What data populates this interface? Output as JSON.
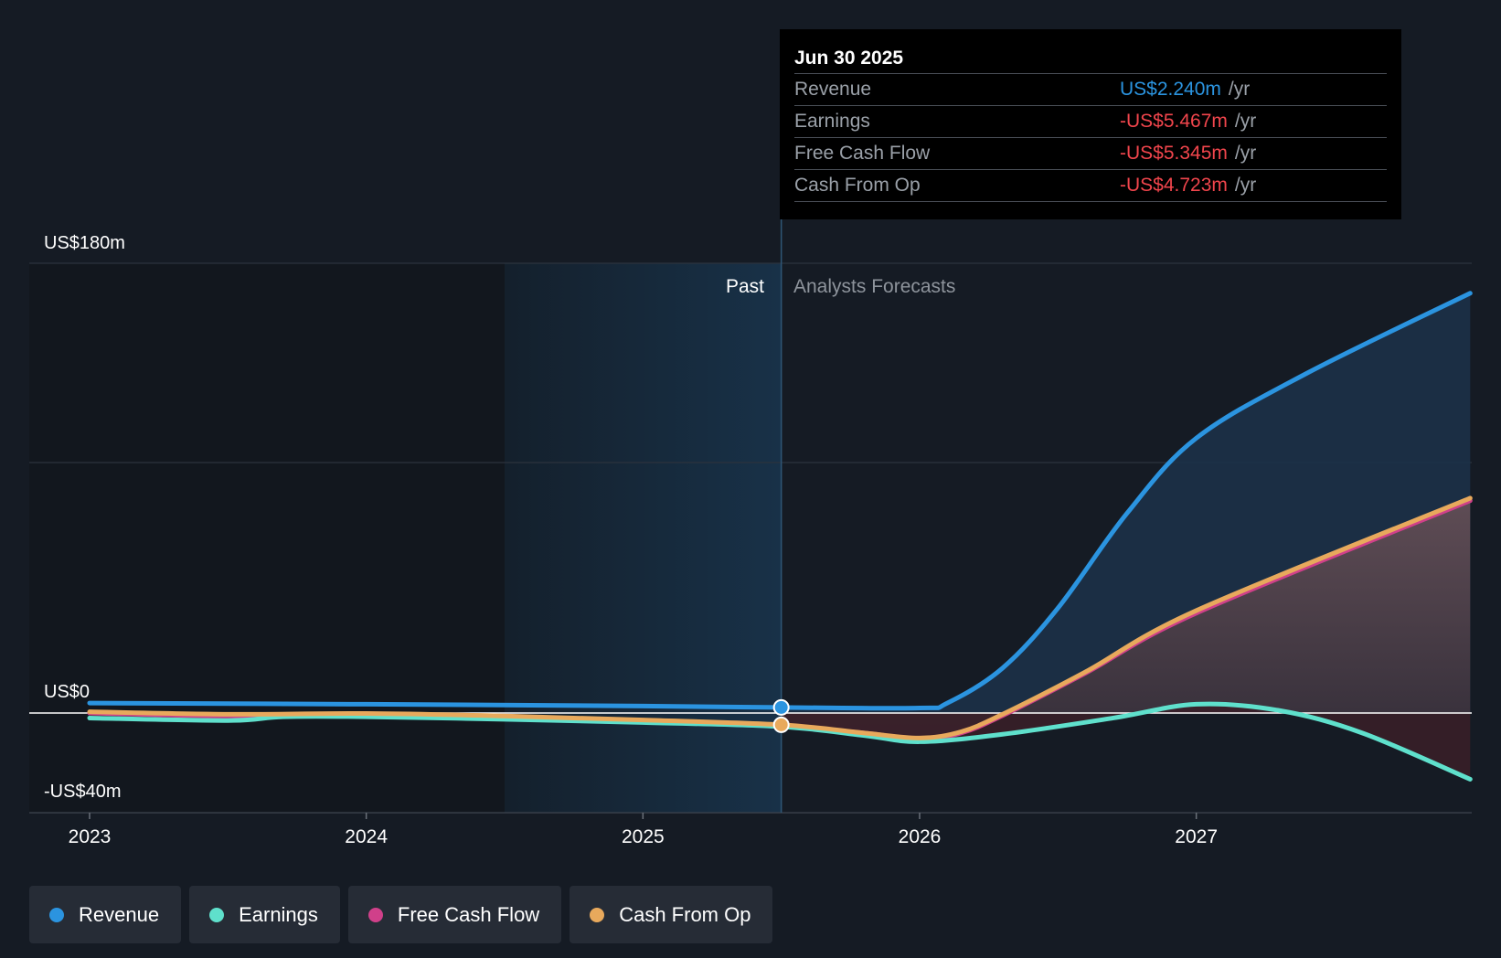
{
  "chart_data": {
    "type": "line",
    "y_axis": {
      "top_label": "US$180m",
      "zero_label": "US$0",
      "bottom_label": "-US$40m",
      "ylim": [
        -40,
        180
      ]
    },
    "x_axis": {
      "ticks": [
        "2023",
        "2024",
        "2025",
        "2026",
        "2027"
      ],
      "xlim": [
        2022.8,
        2027.99
      ]
    },
    "divider_x": 2025.5,
    "highlight_range": [
      2024.5,
      2025.5
    ],
    "past_label": "Past",
    "forecast_label": "Analysts Forecasts",
    "series": [
      {
        "name": "Revenue",
        "color": "#2b94e0",
        "points": [
          [
            2023.0,
            4.0
          ],
          [
            2024.0,
            3.5
          ],
          [
            2025.0,
            2.8
          ],
          [
            2025.5,
            2.24
          ],
          [
            2026.0,
            2.0
          ],
          [
            2026.1,
            4.0
          ],
          [
            2026.3,
            18.0
          ],
          [
            2026.5,
            42.0
          ],
          [
            2026.75,
            80.0
          ],
          [
            2027.0,
            110.0
          ],
          [
            2027.4,
            136.0
          ],
          [
            2027.99,
            168.0
          ]
        ]
      },
      {
        "name": "Earnings",
        "color": "#5fe0cc",
        "points": [
          [
            2023.0,
            -2.0
          ],
          [
            2023.5,
            -3.0
          ],
          [
            2023.7,
            -1.5
          ],
          [
            2024.0,
            -1.5
          ],
          [
            2024.5,
            -2.5
          ],
          [
            2025.0,
            -3.8
          ],
          [
            2025.5,
            -5.467
          ],
          [
            2025.8,
            -9.0
          ],
          [
            2026.0,
            -11.5
          ],
          [
            2026.3,
            -8.5
          ],
          [
            2026.7,
            -2.0
          ],
          [
            2027.0,
            3.5
          ],
          [
            2027.3,
            1.0
          ],
          [
            2027.6,
            -8.0
          ],
          [
            2027.99,
            -26.5
          ]
        ]
      },
      {
        "name": "Free Cash Flow",
        "color": "#d0408a",
        "points": [
          [
            2023.0,
            0.0
          ],
          [
            2023.5,
            -1.2
          ],
          [
            2024.0,
            -0.8
          ],
          [
            2024.5,
            -1.8
          ],
          [
            2025.0,
            -3.2
          ],
          [
            2025.5,
            -5.345
          ],
          [
            2025.8,
            -8.0
          ],
          [
            2026.0,
            -10.5
          ],
          [
            2026.15,
            -8.0
          ],
          [
            2026.3,
            -1.0
          ],
          [
            2026.6,
            16.0
          ],
          [
            2027.0,
            40.0
          ],
          [
            2027.99,
            85.0
          ]
        ]
      },
      {
        "name": "Cash From Op",
        "color": "#e8a95c",
        "points": [
          [
            2023.0,
            0.5
          ],
          [
            2023.5,
            -0.5
          ],
          [
            2024.0,
            -0.2
          ],
          [
            2024.5,
            -1.2
          ],
          [
            2025.0,
            -2.8
          ],
          [
            2025.5,
            -4.723
          ],
          [
            2025.8,
            -8.0
          ],
          [
            2026.0,
            -10.0
          ],
          [
            2026.15,
            -7.5
          ],
          [
            2026.3,
            -0.5
          ],
          [
            2026.6,
            16.5
          ],
          [
            2027.0,
            41.0
          ],
          [
            2027.99,
            86.0
          ]
        ]
      }
    ]
  },
  "tooltip": {
    "date": "Jun 30 2025",
    "rows": [
      {
        "label": "Revenue",
        "value": "US$2.240m",
        "unit": "/yr",
        "color": "#2b94e0"
      },
      {
        "label": "Earnings",
        "value": "-US$5.467m",
        "unit": "/yr",
        "color": "#f0454c"
      },
      {
        "label": "Free Cash Flow",
        "value": "-US$5.345m",
        "unit": "/yr",
        "color": "#f0454c"
      },
      {
        "label": "Cash From Op",
        "value": "-US$4.723m",
        "unit": "/yr",
        "color": "#f0454c"
      }
    ]
  },
  "legend": [
    {
      "label": "Revenue",
      "color": "#2b94e0"
    },
    {
      "label": "Earnings",
      "color": "#5fe0cc"
    },
    {
      "label": "Free Cash Flow",
      "color": "#d0408a"
    },
    {
      "label": "Cash From Op",
      "color": "#e8a95c"
    }
  ]
}
